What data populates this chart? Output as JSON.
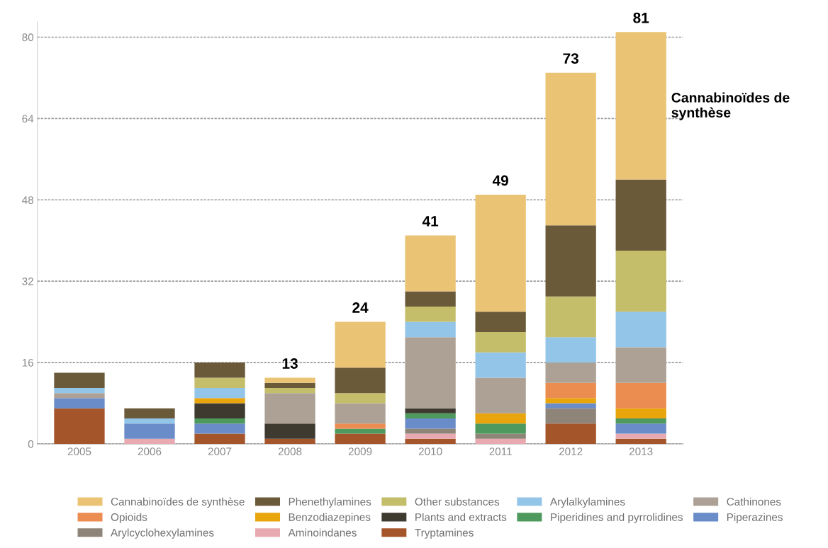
{
  "chart_data": {
    "type": "bar",
    "stacked": true,
    "categories": [
      "2005",
      "2006",
      "2007",
      "2008",
      "2009",
      "2010",
      "2011",
      "2012",
      "2013"
    ],
    "series": [
      {
        "name": "Tryptamines",
        "color": "#a5552a",
        "values": [
          7,
          0,
          2,
          1,
          2,
          1,
          0,
          4,
          1
        ]
      },
      {
        "name": "Aminoindanes",
        "color": "#e8a9b0",
        "values": [
          0,
          1,
          0,
          0,
          0,
          1,
          1,
          0,
          1
        ]
      },
      {
        "name": "Arylcyclohexylamines",
        "color": "#8f8478",
        "values": [
          0,
          0,
          0,
          0,
          0,
          1,
          1,
          3,
          0
        ]
      },
      {
        "name": "Piperazines",
        "color": "#6a8cc8",
        "values": [
          2,
          3,
          2,
          0,
          0,
          2,
          0,
          1,
          2
        ]
      },
      {
        "name": "Piperidines and pyrrolidines",
        "color": "#4e9a5e",
        "values": [
          0,
          0,
          1,
          0,
          1,
          1,
          2,
          0,
          1
        ]
      },
      {
        "name": "Plants and extracts",
        "color": "#3e3a30",
        "values": [
          0,
          0,
          3,
          3,
          0,
          1,
          0,
          0,
          0
        ]
      },
      {
        "name": "Benzodiazepines",
        "color": "#e8a50c",
        "values": [
          0,
          0,
          1,
          0,
          0,
          0,
          2,
          1,
          2
        ]
      },
      {
        "name": "Opioids",
        "color": "#eb8c50",
        "values": [
          0,
          0,
          0,
          0,
          1,
          0,
          0,
          3,
          5
        ]
      },
      {
        "name": "Cathinones",
        "color": "#ada095",
        "values": [
          1,
          0,
          0,
          6,
          4,
          14,
          7,
          4,
          7
        ]
      },
      {
        "name": "Arylalkylamines",
        "color": "#92c5e8",
        "values": [
          1,
          1,
          2,
          0,
          0,
          3,
          5,
          5,
          7
        ]
      },
      {
        "name": "Other substances",
        "color": "#c4bd69",
        "values": [
          0,
          0,
          2,
          1,
          2,
          3,
          4,
          8,
          12
        ]
      },
      {
        "name": "Phenethylamines",
        "color": "#6b5a3a",
        "values": [
          3,
          2,
          3,
          1,
          5,
          3,
          4,
          14,
          14
        ]
      },
      {
        "name": "Cannabinoïdes de synthèse",
        "color": "#ebc374",
        "values": [
          0,
          0,
          0,
          1,
          9,
          11,
          23,
          30,
          29
        ]
      }
    ],
    "totals": [
      null,
      null,
      null,
      "13",
      "24",
      "41",
      "49",
      "73",
      "81"
    ],
    "annotations": [
      "Cannabinoïdes de synthèse"
    ],
    "ylim": [
      0,
      83
    ],
    "yticks": [
      0,
      16,
      32,
      48,
      64,
      80
    ],
    "grid": "y",
    "legend": "bottom"
  }
}
